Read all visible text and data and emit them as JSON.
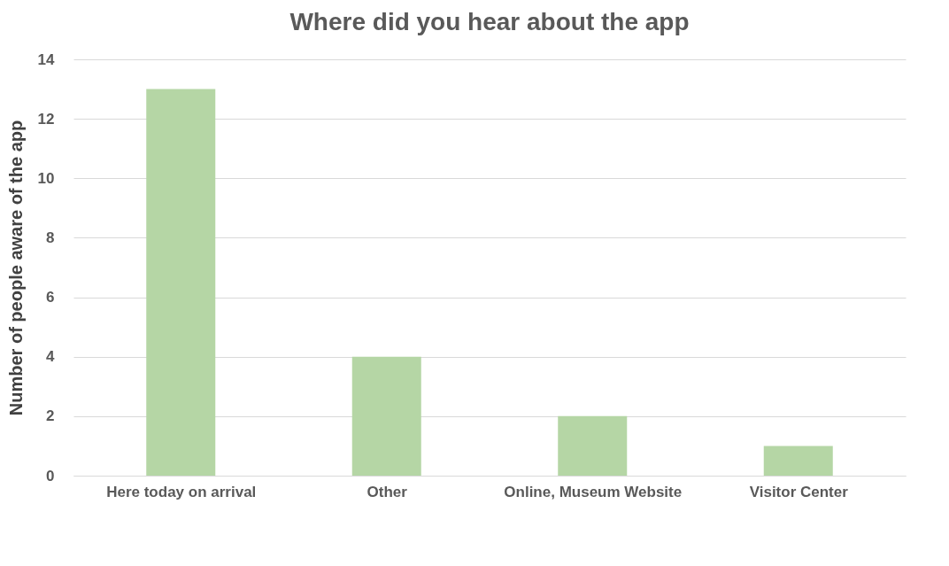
{
  "chart_data": {
    "type": "bar",
    "title": "Where did you hear about the app",
    "ylabel": "Number of people aware of the app",
    "categories": [
      "Here today on arrival",
      "Other",
      "Online, Museum Website",
      "Visitor Center"
    ],
    "values": [
      13,
      4,
      2,
      1
    ],
    "color": "#b5d6a5",
    "ylim": [
      0,
      14
    ],
    "yticks": [
      0,
      2,
      4,
      6,
      8,
      10,
      12,
      14
    ],
    "grid": "y"
  }
}
